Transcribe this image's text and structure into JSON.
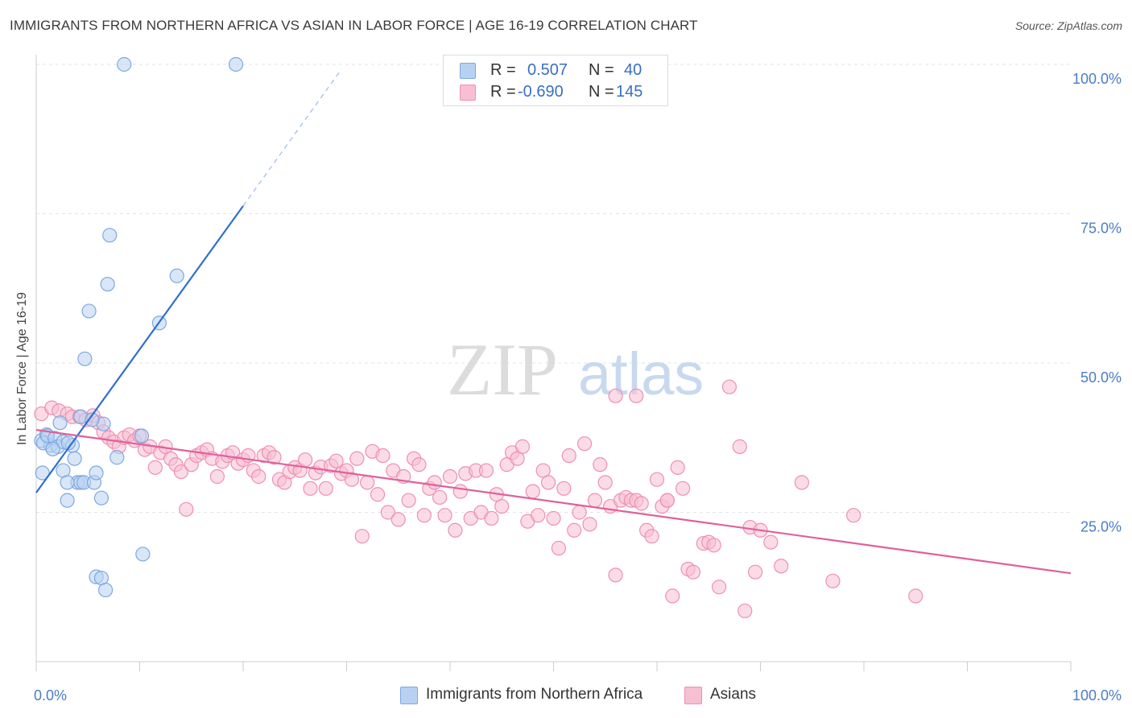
{
  "header": {
    "title": "IMMIGRANTS FROM NORTHERN AFRICA VS ASIAN IN LABOR FORCE | AGE 16-19 CORRELATION CHART",
    "source": "Source: ZipAtlas.com"
  },
  "legend": {
    "r_label": "R =",
    "n_label": "N =",
    "rows": [
      {
        "r": "0.507",
        "n": "40"
      },
      {
        "r": "-0.690",
        "n": "145"
      }
    ]
  },
  "watermark": {
    "zip": "ZIP",
    "atlas": "atlas"
  },
  "colors": {
    "blue_fill": "#b8d1f3",
    "blue_stroke": "#7ea8e0",
    "blue_line": "#2e6fd0",
    "pink_fill": "#f7bfd2",
    "pink_stroke": "#ef8fb0",
    "pink_line": "#e0609a",
    "tick_label": "#4a7cc7"
  },
  "chart_data": {
    "type": "scatter",
    "xlabel": "",
    "ylabel": "In Labor Force | Age 16-19",
    "xlim": [
      0,
      100
    ],
    "ylim": [
      0,
      100
    ],
    "x_tick_labels": [
      {
        "value": 0,
        "label": "0.0%"
      },
      {
        "value": 100,
        "label": "100.0%"
      }
    ],
    "y_tick_labels": [
      {
        "value": 25,
        "label": "25.0%"
      },
      {
        "value": 50,
        "label": "50.0%"
      },
      {
        "value": 75,
        "label": "75.0%"
      },
      {
        "value": 100,
        "label": "100.0%"
      }
    ],
    "grid": true,
    "legend_position": "top-center",
    "series": [
      {
        "name": "Immigrants from Northern Africa",
        "color": "#7ea8e0",
        "r": 0.507,
        "n": 40,
        "trend": {
          "x0": 0,
          "y0": 28.3,
          "x1": 20,
          "y1": 76.3,
          "dash_to": {
            "x": 29.5,
            "y": 99.2
          }
        },
        "points": [
          [
            8.5,
            100
          ],
          [
            19.3,
            100
          ],
          [
            7.1,
            71.4
          ],
          [
            6.9,
            63.2
          ],
          [
            13.6,
            64.6
          ],
          [
            5.1,
            58.7
          ],
          [
            11.9,
            56.7
          ],
          [
            4.7,
            50.7
          ],
          [
            0.5,
            37.0
          ],
          [
            1.0,
            38.0
          ],
          [
            1.4,
            36.2
          ],
          [
            0.7,
            36.6
          ],
          [
            1.1,
            37.8
          ],
          [
            1.8,
            37.4
          ],
          [
            2.3,
            40.0
          ],
          [
            2.1,
            36.0
          ],
          [
            2.6,
            36.8
          ],
          [
            1.6,
            35.6
          ],
          [
            3.5,
            36.2
          ],
          [
            3.1,
            36.6
          ],
          [
            3.7,
            34.0
          ],
          [
            2.6,
            32.0
          ],
          [
            4.0,
            30.0
          ],
          [
            4.3,
            30.0
          ],
          [
            4.6,
            30.0
          ],
          [
            5.6,
            30.0
          ],
          [
            5.8,
            31.6
          ],
          [
            3.0,
            30.0
          ],
          [
            0.6,
            31.6
          ],
          [
            6.5,
            39.8
          ],
          [
            4.3,
            41.0
          ],
          [
            5.4,
            40.5
          ],
          [
            7.8,
            34.2
          ],
          [
            6.3,
            27.4
          ],
          [
            3.0,
            27.0
          ],
          [
            10.2,
            37.8
          ],
          [
            10.3,
            18.0
          ],
          [
            5.8,
            14.2
          ],
          [
            6.3,
            14.0
          ],
          [
            6.7,
            12.0
          ]
        ]
      },
      {
        "name": "Asians",
        "color": "#ef8fb0",
        "r": -0.69,
        "n": 145,
        "trend": {
          "x0": 0,
          "y0": 38.8,
          "x1": 100,
          "y1": 14.8
        },
        "points": [
          [
            0.5,
            41.5
          ],
          [
            1.5,
            42.5
          ],
          [
            2.2,
            42.0
          ],
          [
            3.0,
            41.5
          ],
          [
            3.5,
            41.0
          ],
          [
            4.2,
            41.0
          ],
          [
            4.8,
            40.5
          ],
          [
            5.5,
            41.2
          ],
          [
            6.0,
            40.0
          ],
          [
            6.5,
            38.5
          ],
          [
            7.0,
            37.5
          ],
          [
            7.5,
            36.8
          ],
          [
            8.0,
            36.0
          ],
          [
            8.5,
            37.5
          ],
          [
            9.0,
            38.0
          ],
          [
            9.5,
            37.0
          ],
          [
            10.0,
            37.8
          ],
          [
            10.5,
            35.5
          ],
          [
            11.0,
            36.0
          ],
          [
            11.5,
            32.5
          ],
          [
            12.0,
            35.0
          ],
          [
            12.5,
            36.0
          ],
          [
            13.0,
            34.0
          ],
          [
            13.5,
            33.0
          ],
          [
            14.0,
            31.8
          ],
          [
            14.5,
            25.5
          ],
          [
            15.0,
            33.0
          ],
          [
            15.5,
            34.5
          ],
          [
            16.0,
            35.0
          ],
          [
            16.5,
            35.5
          ],
          [
            17.0,
            34.0
          ],
          [
            17.5,
            31.0
          ],
          [
            18.0,
            33.5
          ],
          [
            18.5,
            34.5
          ],
          [
            19.0,
            35.0
          ],
          [
            19.5,
            33.2
          ],
          [
            20.0,
            33.8
          ],
          [
            20.5,
            34.5
          ],
          [
            21.0,
            32.0
          ],
          [
            21.5,
            31.0
          ],
          [
            22.0,
            34.5
          ],
          [
            22.5,
            35.0
          ],
          [
            23.0,
            34.2
          ],
          [
            23.5,
            30.5
          ],
          [
            24.0,
            30.0
          ],
          [
            24.5,
            31.8
          ],
          [
            25.0,
            32.5
          ],
          [
            25.5,
            32.0
          ],
          [
            26.0,
            33.8
          ],
          [
            26.5,
            29.0
          ],
          [
            27.0,
            31.6
          ],
          [
            27.5,
            32.6
          ],
          [
            28.0,
            29.0
          ],
          [
            28.5,
            32.8
          ],
          [
            29.0,
            33.6
          ],
          [
            29.5,
            31.5
          ],
          [
            30.0,
            32.0
          ],
          [
            30.5,
            30.5
          ],
          [
            31.0,
            34.0
          ],
          [
            31.5,
            21.0
          ],
          [
            32.0,
            30.0
          ],
          [
            32.5,
            35.2
          ],
          [
            33.0,
            28.0
          ],
          [
            33.5,
            34.5
          ],
          [
            34.0,
            25.0
          ],
          [
            34.5,
            32.0
          ],
          [
            35.0,
            23.8
          ],
          [
            35.5,
            31.0
          ],
          [
            36.0,
            27.0
          ],
          [
            36.5,
            34.0
          ],
          [
            37.0,
            33.0
          ],
          [
            37.5,
            24.5
          ],
          [
            38.0,
            29.0
          ],
          [
            38.5,
            30.0
          ],
          [
            39.0,
            27.5
          ],
          [
            39.5,
            24.5
          ],
          [
            40.0,
            31.0
          ],
          [
            40.5,
            22.0
          ],
          [
            41.0,
            28.5
          ],
          [
            41.5,
            31.5
          ],
          [
            42.0,
            24.0
          ],
          [
            42.5,
            32.0
          ],
          [
            43.0,
            25.0
          ],
          [
            43.5,
            32.0
          ],
          [
            44.0,
            24.0
          ],
          [
            44.5,
            28.0
          ],
          [
            45.0,
            26.0
          ],
          [
            45.5,
            33.0
          ],
          [
            46.0,
            35.0
          ],
          [
            46.5,
            34.0
          ],
          [
            47.0,
            36.0
          ],
          [
            47.5,
            23.5
          ],
          [
            48.0,
            28.5
          ],
          [
            48.5,
            24.5
          ],
          [
            49.0,
            32.0
          ],
          [
            49.5,
            30.0
          ],
          [
            50.0,
            24.0
          ],
          [
            50.5,
            19.0
          ],
          [
            51.0,
            29.0
          ],
          [
            51.5,
            34.5
          ],
          [
            52.0,
            22.0
          ],
          [
            52.5,
            25.0
          ],
          [
            53.0,
            36.5
          ],
          [
            53.5,
            23.0
          ],
          [
            54.0,
            27.0
          ],
          [
            54.5,
            33.0
          ],
          [
            55.0,
            30.0
          ],
          [
            55.5,
            26.0
          ],
          [
            56.0,
            14.5
          ],
          [
            56.5,
            27.0
          ],
          [
            57.0,
            27.5
          ],
          [
            57.5,
            27.0
          ],
          [
            58.0,
            27.0
          ],
          [
            58.5,
            26.5
          ],
          [
            59.0,
            22.0
          ],
          [
            59.5,
            21.0
          ],
          [
            60.0,
            30.5
          ],
          [
            60.5,
            26.0
          ],
          [
            61.0,
            27.0
          ],
          [
            61.5,
            11.0
          ],
          [
            62.0,
            32.5
          ],
          [
            62.5,
            29.0
          ],
          [
            63.0,
            15.5
          ],
          [
            63.5,
            15.0
          ],
          [
            64.5,
            19.8
          ],
          [
            65.0,
            20.0
          ],
          [
            65.5,
            19.5
          ],
          [
            66.0,
            12.5
          ],
          [
            67.0,
            46.0
          ],
          [
            68.0,
            36.0
          ],
          [
            68.5,
            8.5
          ],
          [
            69.0,
            22.5
          ],
          [
            69.5,
            15.0
          ],
          [
            70.0,
            22.0
          ],
          [
            71.0,
            20.0
          ],
          [
            72.0,
            16.0
          ],
          [
            74.0,
            30.0
          ],
          [
            77.0,
            13.5
          ],
          [
            79.0,
            24.5
          ],
          [
            85.0,
            11.0
          ],
          [
            56.0,
            44.5
          ],
          [
            58.0,
            44.5
          ],
          [
            61.0,
            27.0
          ]
        ]
      }
    ]
  },
  "bottom_legend": {
    "items": [
      "Immigrants from Northern Africa",
      "Asians"
    ]
  }
}
